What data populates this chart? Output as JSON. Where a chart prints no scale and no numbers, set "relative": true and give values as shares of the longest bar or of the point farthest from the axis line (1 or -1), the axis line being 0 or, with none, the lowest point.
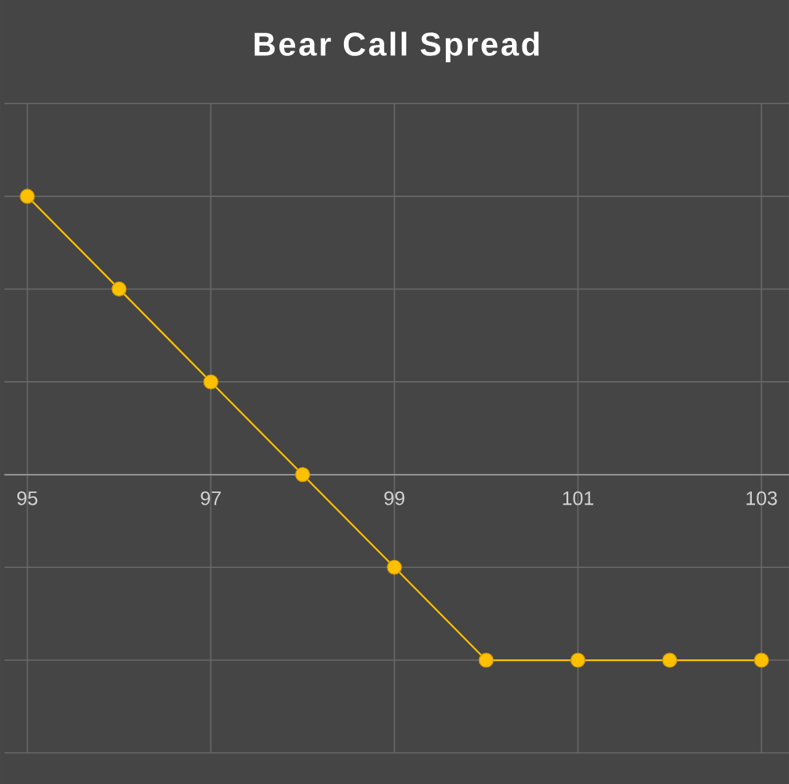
{
  "chart_data": {
    "type": "line",
    "title": "Bear Call Spread",
    "x": [
      95,
      96,
      97,
      98,
      99,
      100,
      101,
      102,
      103
    ],
    "values": [
      1,
      0.667,
      0.333,
      0,
      -0.333,
      -0.667,
      -0.667,
      -0.667,
      -0.667
    ],
    "color": "#ffc000",
    "marker": "circle",
    "relative": true,
    "grid": true,
    "xlim": [
      94.75,
      103.3
    ],
    "xticks": [
      95,
      97,
      99,
      101,
      103
    ]
  }
}
